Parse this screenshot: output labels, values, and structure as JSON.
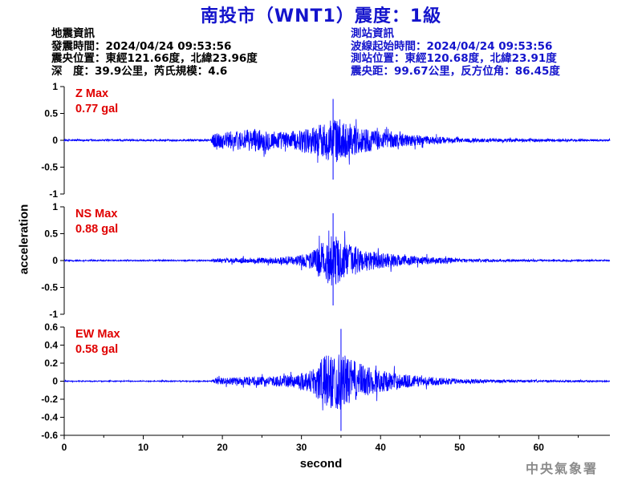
{
  "title": "南投市（WNT1）震度：1級",
  "earthquake_info": {
    "heading": "地震資訊",
    "time": "發震時間：2024/04/24 09:53:56",
    "location": "震央位置：東經121.66度，北緯23.96度",
    "depth_magnitude": "深　度：39.9公里，芮氏規模：4.6"
  },
  "station_info": {
    "heading": "測站資訊",
    "wave_start": "波線起始時間：2024/04/24 09:53:56",
    "location": "測站位置：東經120.68度，北緯23.91度",
    "distance": "震央距：99.67公里，反方位角：86.45度"
  },
  "credit": "中央氣象署",
  "colors": {
    "title": "#1414cc",
    "trace": "#0000ff",
    "annotation": "#e00000",
    "credit": "#8c8c8c"
  },
  "chart_data": {
    "type": "line",
    "xlabel": "second",
    "ylabel": "acceleration",
    "xlim": [
      0,
      69
    ],
    "xticks": [
      0,
      10,
      20,
      30,
      40,
      50,
      60
    ],
    "grid": false,
    "panels": [
      {
        "name": "Z",
        "annotation": [
          "Z Max",
          "0.77 gal"
        ],
        "max_gal": 0.77,
        "ylim": [
          -1,
          1
        ],
        "yticks": [
          1,
          0.5,
          0,
          -0.5,
          -1
        ],
        "ytick_labels": [
          "1",
          "0.5",
          "0",
          "-0.5",
          "-1"
        ],
        "envelope": {
          "x": [
            0,
            18.5,
            19,
            21,
            24,
            26,
            28,
            30,
            32,
            33,
            34,
            35,
            36,
            38,
            40,
            43,
            46,
            50,
            55,
            60,
            65,
            69
          ],
          "amp": [
            0.03,
            0.03,
            0.28,
            0.3,
            0.38,
            0.35,
            0.28,
            0.35,
            0.52,
            0.62,
            0.77,
            0.7,
            0.55,
            0.42,
            0.3,
            0.22,
            0.14,
            0.08,
            0.06,
            0.05,
            0.04,
            0.03
          ]
        }
      },
      {
        "name": "NS",
        "annotation": [
          "NS Max",
          "0.88 gal"
        ],
        "max_gal": 0.88,
        "ylim": [
          -1,
          1
        ],
        "yticks": [
          1,
          0.5,
          0,
          -0.5,
          -1
        ],
        "ytick_labels": [
          "1",
          "0.5",
          "0",
          "-0.5",
          "-1"
        ],
        "envelope": {
          "x": [
            0,
            18.5,
            19,
            22,
            26,
            29,
            31,
            32,
            33,
            34,
            35,
            36,
            38,
            40,
            43,
            46,
            50,
            55,
            60,
            65,
            69
          ],
          "amp": [
            0.02,
            0.02,
            0.07,
            0.09,
            0.1,
            0.14,
            0.25,
            0.48,
            0.72,
            0.88,
            0.7,
            0.55,
            0.38,
            0.26,
            0.18,
            0.12,
            0.07,
            0.04,
            0.03,
            0.03,
            0.02
          ]
        }
      },
      {
        "name": "EW",
        "annotation": [
          "EW Max",
          "0.58 gal"
        ],
        "max_gal": 0.58,
        "ylim": [
          -0.6,
          0.6
        ],
        "yticks": [
          0.6,
          0.4,
          0.2,
          0,
          -0.2,
          -0.4,
          -0.6
        ],
        "ytick_labels": [
          "0.6",
          "0.4",
          "0.2",
          "0",
          "-0.2",
          "-0.4",
          "-0.6"
        ],
        "envelope": {
          "x": [
            0,
            18.5,
            19,
            22,
            26,
            29,
            31,
            32,
            33,
            34,
            35,
            36,
            38,
            40,
            43,
            46,
            50,
            55,
            60,
            65,
            69
          ],
          "amp": [
            0.01,
            0.01,
            0.06,
            0.08,
            0.09,
            0.13,
            0.22,
            0.38,
            0.52,
            0.56,
            0.58,
            0.46,
            0.32,
            0.22,
            0.14,
            0.09,
            0.05,
            0.03,
            0.02,
            0.02,
            0.01
          ]
        }
      }
    ]
  }
}
